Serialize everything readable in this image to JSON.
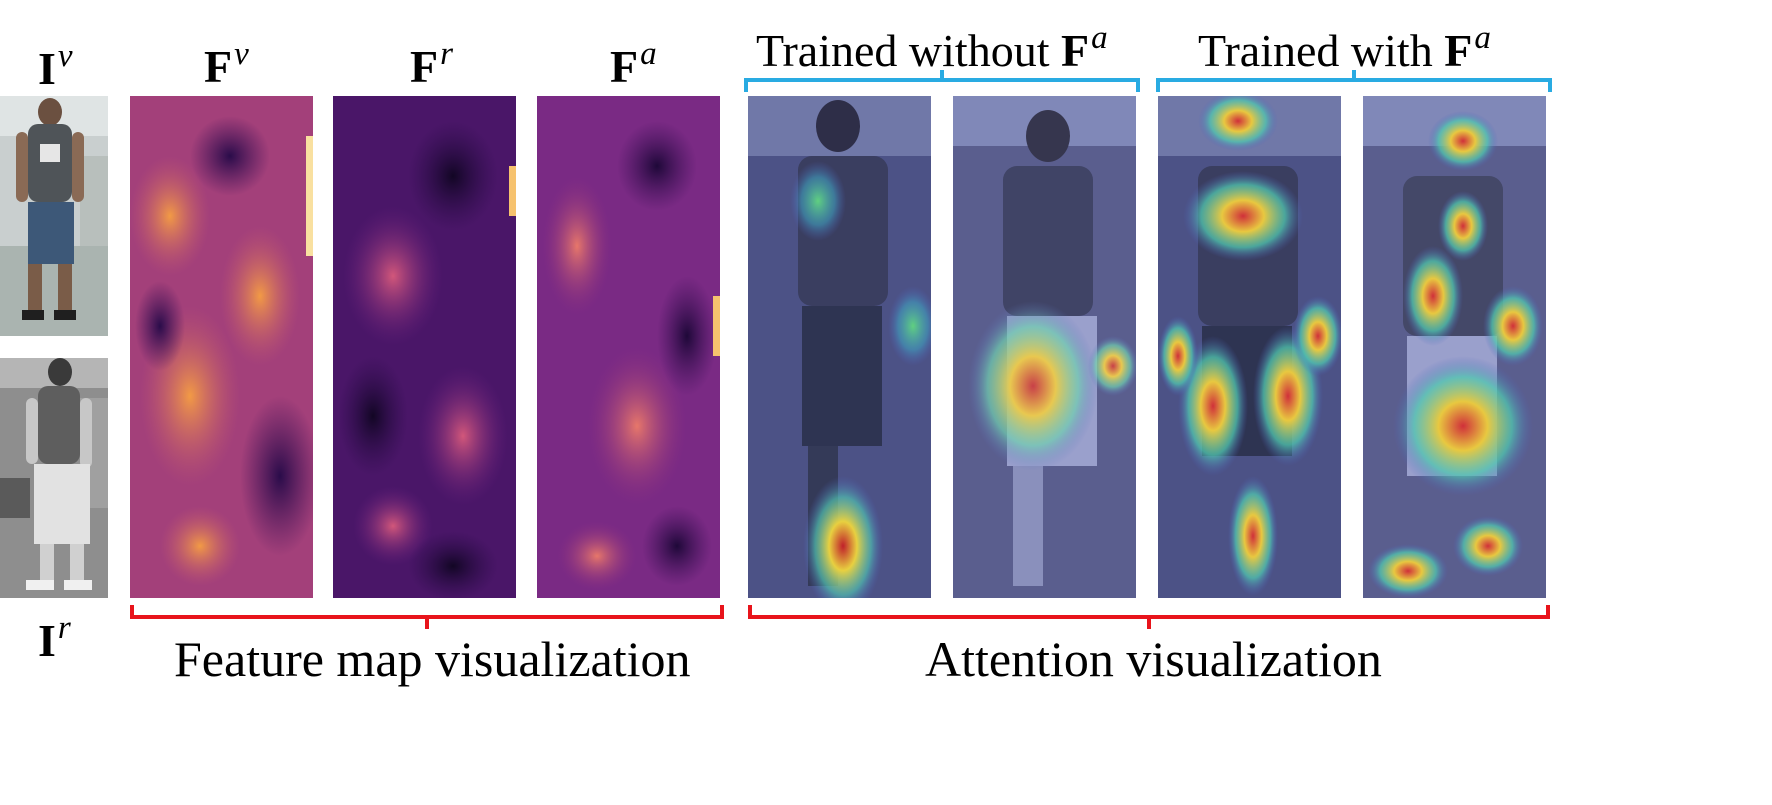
{
  "row_labels": {
    "visible_image": {
      "base": "I",
      "sup": "v"
    },
    "infrared_image": {
      "base": "I",
      "sup": "r"
    }
  },
  "feature_columns": [
    {
      "base": "F",
      "sup": "v"
    },
    {
      "base": "F",
      "sup": "r"
    },
    {
      "base": "F",
      "sup": "a"
    }
  ],
  "attention_groups": [
    {
      "prefix": "Trained without ",
      "base": "F",
      "sup": "a"
    },
    {
      "prefix": "Trained with ",
      "base": "F",
      "sup": "a"
    }
  ],
  "captions": {
    "feature_map": "Feature map visualization",
    "attention": "Attention visualization"
  },
  "colors": {
    "brace_blue": "#29abe2",
    "brace_red": "#e8141b",
    "featuremap_dark": "#1a0a3a",
    "featuremap_mid": "#7a2a8a",
    "featuremap_hot": "#f08a3a",
    "attention_bg": "#5a6090"
  }
}
